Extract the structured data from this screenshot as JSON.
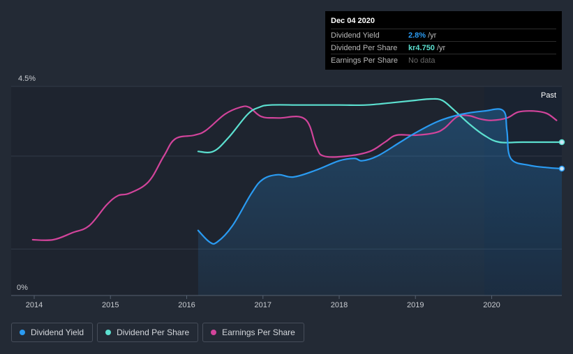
{
  "chart_data": {
    "type": "line",
    "x_ticks": [
      "2014",
      "2015",
      "2016",
      "2017",
      "2018",
      "2019",
      "2020"
    ],
    "ylim": [
      0,
      4.5
    ],
    "y_ticks": [
      "4.5%",
      "0%"
    ],
    "past_label": "Past",
    "series": [
      {
        "name": "Dividend Yield",
        "color": "#2a9bf2",
        "unit": "%",
        "points": [
          [
            2016.15,
            1.4
          ],
          [
            2016.3,
            1.15
          ],
          [
            2016.4,
            1.15
          ],
          [
            2016.6,
            1.5
          ],
          [
            2016.85,
            2.2
          ],
          [
            2017.0,
            2.5
          ],
          [
            2017.2,
            2.6
          ],
          [
            2017.4,
            2.55
          ],
          [
            2017.7,
            2.7
          ],
          [
            2018.0,
            2.9
          ],
          [
            2018.2,
            2.95
          ],
          [
            2018.3,
            2.9
          ],
          [
            2018.5,
            3.0
          ],
          [
            2018.8,
            3.3
          ],
          [
            2019.0,
            3.5
          ],
          [
            2019.3,
            3.75
          ],
          [
            2019.6,
            3.9
          ],
          [
            2019.9,
            3.97
          ],
          [
            2020.15,
            3.98
          ],
          [
            2020.2,
            3.55
          ],
          [
            2020.25,
            2.95
          ],
          [
            2020.5,
            2.8
          ],
          [
            2020.75,
            2.75
          ],
          [
            2020.92,
            2.73
          ]
        ]
      },
      {
        "name": "Dividend Per Share",
        "color": "#5ce0d0",
        "unit": "kr",
        "points": [
          [
            2016.15,
            3.1
          ],
          [
            2016.35,
            3.1
          ],
          [
            2016.55,
            3.4
          ],
          [
            2016.8,
            3.9
          ],
          [
            2016.95,
            4.05
          ],
          [
            2017.1,
            4.1
          ],
          [
            2017.5,
            4.1
          ],
          [
            2018.0,
            4.1
          ],
          [
            2018.35,
            4.1
          ],
          [
            2018.7,
            4.15
          ],
          [
            2019.0,
            4.2
          ],
          [
            2019.2,
            4.23
          ],
          [
            2019.35,
            4.2
          ],
          [
            2019.5,
            4.0
          ],
          [
            2019.7,
            3.7
          ],
          [
            2019.9,
            3.45
          ],
          [
            2020.1,
            3.3
          ],
          [
            2020.4,
            3.3
          ],
          [
            2020.92,
            3.3
          ]
        ]
      },
      {
        "name": "Earnings Per Share",
        "color": "#d2449b",
        "unit": "kr",
        "points": [
          [
            2013.98,
            1.2
          ],
          [
            2014.25,
            1.2
          ],
          [
            2014.5,
            1.35
          ],
          [
            2014.72,
            1.5
          ],
          [
            2014.95,
            1.95
          ],
          [
            2015.1,
            2.15
          ],
          [
            2015.25,
            2.2
          ],
          [
            2015.5,
            2.45
          ],
          [
            2015.7,
            3.0
          ],
          [
            2015.85,
            3.37
          ],
          [
            2016.1,
            3.45
          ],
          [
            2016.25,
            3.55
          ],
          [
            2016.5,
            3.9
          ],
          [
            2016.7,
            4.05
          ],
          [
            2016.82,
            4.05
          ],
          [
            2016.98,
            3.85
          ],
          [
            2017.2,
            3.82
          ],
          [
            2017.55,
            3.8
          ],
          [
            2017.7,
            3.2
          ],
          [
            2017.8,
            3.0
          ],
          [
            2018.1,
            3.0
          ],
          [
            2018.4,
            3.1
          ],
          [
            2018.6,
            3.3
          ],
          [
            2018.75,
            3.45
          ],
          [
            2019.0,
            3.45
          ],
          [
            2019.25,
            3.5
          ],
          [
            2019.38,
            3.6
          ],
          [
            2019.55,
            3.85
          ],
          [
            2019.7,
            3.87
          ],
          [
            2019.85,
            3.8
          ],
          [
            2020.0,
            3.77
          ],
          [
            2020.2,
            3.82
          ],
          [
            2020.35,
            3.95
          ],
          [
            2020.55,
            3.97
          ],
          [
            2020.72,
            3.92
          ],
          [
            2020.85,
            3.77
          ]
        ]
      }
    ]
  },
  "tooltip": {
    "date": "Dec 04 2020",
    "rows": [
      {
        "label": "Dividend Yield",
        "value": "2.8%",
        "unit": "/yr",
        "color": "#2a9bf2"
      },
      {
        "label": "Dividend Per Share",
        "value": "kr4.750",
        "unit": "/yr",
        "color": "#5ce0d0"
      },
      {
        "label": "Earnings Per Share",
        "nodata": "No data"
      }
    ]
  },
  "legend": [
    {
      "label": "Dividend Yield",
      "color": "#2a9bf2"
    },
    {
      "label": "Dividend Per Share",
      "color": "#5ce0d0"
    },
    {
      "label": "Earnings Per Share",
      "color": "#d2449b"
    }
  ]
}
